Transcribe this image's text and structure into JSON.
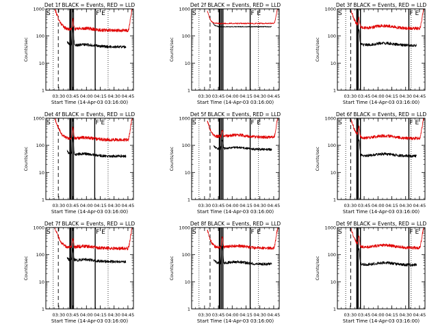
{
  "figure": {
    "background_color": "#ffffff",
    "axis_color": "#000000",
    "events_color": "#000000",
    "lld_color": "#e00000"
  },
  "chart_data": [
    {
      "type": "line",
      "title": "Det 1f BLACK = Events, RED = LLD",
      "xlabel": "Start Time (14-Apr-03 03:16:00)",
      "ylabel": "Counts/sec",
      "yscale": "log",
      "ylim": [
        1,
        1000
      ],
      "xlim_minutes": [
        0,
        95
      ],
      "x_tick_labels": [
        "03:30",
        "03:45",
        "04:00",
        "04:15",
        "04:30",
        "04:45"
      ],
      "y_tick_labels": [
        "1",
        "10",
        "100",
        "1000"
      ],
      "markers": [
        {
          "t": 53.5,
          "label": "F"
        },
        {
          "t": 59.5,
          "label": "E"
        }
      ],
      "markers_dotted_t": [
        8,
        67.5
      ],
      "markers_dashed_t": [
        13.5
      ],
      "markers_solid_t": [
        26,
        27,
        28.5,
        30,
        53.5
      ],
      "series": [
        {
          "name": "RED = LLD",
          "start": 10,
          "end": 94,
          "base": 160,
          "start_level": 950,
          "decay": 3.5,
          "spike": 200,
          "bump": 1.2,
          "end_rise": 1200,
          "noise": 0.14
        },
        {
          "name": "BLACK = Events",
          "start": 23,
          "end": 87,
          "base": 40,
          "start_level": 60,
          "decay": 3.0,
          "spike": 130,
          "bump": 1.2,
          "end_rise": 0,
          "noise": 0.12
        }
      ]
    },
    {
      "type": "line",
      "title": "Det 2f BLACK = Events, RED = LLD",
      "xlabel": "Start Time (14-Apr-03 03:16:00)",
      "ylabel": "Counts/sec",
      "yscale": "log",
      "ylim": [
        1,
        1000
      ],
      "xlim_minutes": [
        0,
        95
      ],
      "x_tick_labels": [
        "03:30",
        "03:45",
        "04:00",
        "04:15",
        "04:30",
        "04:45"
      ],
      "y_tick_labels": [
        "1",
        "10",
        "100",
        "1000"
      ],
      "markers": [
        {
          "t": 63.5,
          "label": "F"
        },
        {
          "t": 70,
          "label": "E"
        }
      ],
      "markers_dotted_t": [
        8,
        72.5
      ],
      "markers_dashed_t": [
        20
      ],
      "markers_solid_t": [
        30,
        31,
        32.5,
        34,
        63.5
      ],
      "series": [
        {
          "name": "RED = LLD",
          "start": 17,
          "end": 94,
          "base": 290,
          "start_level": 900,
          "decay": 2.0,
          "spike": 0,
          "bump": 1.0,
          "end_rise": 1400,
          "noise": 0.05
        },
        {
          "name": "BLACK = Events",
          "start": 23,
          "end": 87,
          "base": 220,
          "start_level": 300,
          "decay": 2.0,
          "spike": 0,
          "bump": 1.0,
          "end_rise": 0,
          "noise": 0.04
        }
      ]
    },
    {
      "type": "line",
      "title": "Det 3f BLACK = Events, RED = LLD",
      "xlabel": "Start Time (14-Apr-03 03:16:00)",
      "ylabel": "Counts/sec",
      "yscale": "log",
      "ylim": [
        1,
        1000
      ],
      "xlim_minutes": [
        0,
        95
      ],
      "x_tick_labels": [
        "03:30",
        "03:45",
        "04:00",
        "04:15",
        "04:30",
        "04:45"
      ],
      "y_tick_labels": [
        "1",
        "10",
        "100",
        "1000"
      ],
      "markers": [
        {
          "t": 77.5,
          "label": "F"
        },
        {
          "t": 83.5,
          "label": "E"
        }
      ],
      "markers_dotted_t": [
        9,
        80
      ],
      "markers_dashed_t": [
        14.5
      ],
      "markers_solid_t": [
        21,
        21.5,
        22.5,
        25,
        77.5
      ],
      "series": [
        {
          "name": "RED = LLD",
          "start": 15,
          "end": 94,
          "base": 190,
          "start_level": 850,
          "decay": 3.0,
          "spike": 220,
          "bump": 1.25,
          "end_rise": 1200,
          "noise": 0.13
        },
        {
          "name": "BLACK = Events",
          "start": 21,
          "end": 86,
          "base": 45,
          "start_level": 65,
          "decay": 3.0,
          "spike": 110,
          "bump": 1.2,
          "end_rise": 0,
          "noise": 0.12
        }
      ]
    },
    {
      "type": "line",
      "title": "Det 4f BLACK = Events, RED = LLD",
      "xlabel": "Start Time (14-Apr-03 03:16:00)",
      "ylabel": "Counts/sec",
      "yscale": "log",
      "ylim": [
        1,
        1000
      ],
      "xlim_minutes": [
        0,
        95
      ],
      "x_tick_labels": [
        "03:30",
        "03:45",
        "04:00",
        "04:15",
        "04:30",
        "04:45"
      ],
      "y_tick_labels": [
        "1",
        "10",
        "100",
        "1000"
      ],
      "markers": [
        {
          "t": 53,
          "label": "F"
        },
        {
          "t": 59,
          "label": "E"
        }
      ],
      "markers_dotted_t": [
        8,
        67.5
      ],
      "markers_dashed_t": [
        13.5
      ],
      "markers_solid_t": [
        26,
        27,
        28.5,
        30,
        53
      ],
      "series": [
        {
          "name": "RED = LLD",
          "start": 10,
          "end": 94,
          "base": 160,
          "start_level": 950,
          "decay": 3.5,
          "spike": 220,
          "bump": 1.2,
          "end_rise": 1200,
          "noise": 0.14
        },
        {
          "name": "BLACK = Events",
          "start": 23,
          "end": 87,
          "base": 40,
          "start_level": 60,
          "decay": 3.0,
          "spike": 120,
          "bump": 1.2,
          "end_rise": 0,
          "noise": 0.12
        }
      ]
    },
    {
      "type": "line",
      "title": "Det 5f BLACK = Events, RED = LLD",
      "xlabel": "Start Time (14-Apr-03 03:16:00)",
      "ylabel": "Counts/sec",
      "yscale": "log",
      "ylim": [
        1,
        1000
      ],
      "xlim_minutes": [
        0,
        95
      ],
      "x_tick_labels": [
        "03:30",
        "03:45",
        "04:00",
        "04:15",
        "04:30",
        "04:45"
      ],
      "y_tick_labels": [
        "1",
        "10",
        "100",
        "1000"
      ],
      "markers": [
        {
          "t": 63.5,
          "label": "F"
        },
        {
          "t": 70,
          "label": "E"
        }
      ],
      "markers_dotted_t": [
        8,
        72.5
      ],
      "markers_dashed_t": [
        20
      ],
      "markers_solid_t": [
        30,
        31,
        32.5,
        34,
        63.5
      ],
      "series": [
        {
          "name": "RED = LLD",
          "start": 17,
          "end": 94,
          "base": 200,
          "start_level": 850,
          "decay": 2.5,
          "spike": 150,
          "bump": 1.2,
          "end_rise": 1300,
          "noise": 0.13
        },
        {
          "name": "BLACK = Events",
          "start": 24,
          "end": 87,
          "base": 70,
          "start_level": 100,
          "decay": 2.5,
          "spike": 80,
          "bump": 1.2,
          "end_rise": 0,
          "noise": 0.1
        }
      ]
    },
    {
      "type": "line",
      "title": "Det 6f BLACK = Events, RED = LLD",
      "xlabel": "Start Time (14-Apr-03 03:16:00)",
      "ylabel": "Counts/sec",
      "yscale": "log",
      "ylim": [
        1,
        1000
      ],
      "xlim_minutes": [
        0,
        95
      ],
      "x_tick_labels": [
        "03:30",
        "03:45",
        "04:00",
        "04:15",
        "04:30",
        "04:45"
      ],
      "y_tick_labels": [
        "1",
        "10",
        "100",
        "1000"
      ],
      "markers": [
        {
          "t": 77.5,
          "label": "F"
        },
        {
          "t": 83.5,
          "label": "E"
        }
      ],
      "markers_dotted_t": [
        9,
        80
      ],
      "markers_dashed_t": [
        14.5
      ],
      "markers_solid_t": [
        21,
        21.5,
        22.5,
        25,
        77.5
      ],
      "series": [
        {
          "name": "RED = LLD",
          "start": 15,
          "end": 94,
          "base": 180,
          "start_level": 850,
          "decay": 3.0,
          "spike": 260,
          "bump": 1.25,
          "end_rise": 1200,
          "noise": 0.13
        },
        {
          "name": "BLACK = Events",
          "start": 21,
          "end": 86,
          "base": 40,
          "start_level": 60,
          "decay": 3.0,
          "spike": 120,
          "bump": 1.2,
          "end_rise": 0,
          "noise": 0.12
        }
      ]
    },
    {
      "type": "line",
      "title": "Det 7f BLACK = Events, RED = LLD",
      "xlabel": "Start Time (14-Apr-03 03:16:00)",
      "ylabel": "Counts/sec",
      "yscale": "log",
      "ylim": [
        1,
        1000
      ],
      "xlim_minutes": [
        0,
        95
      ],
      "x_tick_labels": [
        "03:30",
        "03:45",
        "04:00",
        "04:15",
        "04:30",
        "04:45"
      ],
      "y_tick_labels": [
        "1",
        "10",
        "100",
        "1000"
      ],
      "markers": [
        {
          "t": 53.5,
          "label": "F"
        },
        {
          "t": 59.5,
          "label": "E"
        }
      ],
      "markers_dotted_t": [
        8,
        67.5
      ],
      "markers_dashed_t": [
        13.5
      ],
      "markers_solid_t": [
        26,
        27,
        28.5,
        30,
        53.5
      ],
      "series": [
        {
          "name": "RED = LLD",
          "start": 10,
          "end": 94,
          "base": 170,
          "start_level": 950,
          "decay": 3.5,
          "spike": 180,
          "bump": 1.2,
          "end_rise": 1200,
          "noise": 0.14
        },
        {
          "name": "BLACK = Events",
          "start": 23,
          "end": 87,
          "base": 55,
          "start_level": 70,
          "decay": 3.0,
          "spike": 90,
          "bump": 1.2,
          "end_rise": 0,
          "noise": 0.12
        }
      ]
    },
    {
      "type": "line",
      "title": "Det 8f BLACK = Events, RED = LLD",
      "xlabel": "Start Time (14-Apr-03 03:16:00)",
      "ylabel": "Counts/sec",
      "yscale": "log",
      "ylim": [
        1,
        1000
      ],
      "xlim_minutes": [
        0,
        95
      ],
      "x_tick_labels": [
        "03:30",
        "03:45",
        "04:00",
        "04:15",
        "04:30",
        "04:45"
      ],
      "y_tick_labels": [
        "1",
        "10",
        "100",
        "1000"
      ],
      "markers": [
        {
          "t": 63.5,
          "label": "F"
        },
        {
          "t": 70,
          "label": "E"
        }
      ],
      "markers_dotted_t": [
        8,
        72.5
      ],
      "markers_dashed_t": [
        20
      ],
      "markers_solid_t": [
        30,
        31,
        32.5,
        34,
        63.5
      ],
      "series": [
        {
          "name": "RED = LLD",
          "start": 17,
          "end": 94,
          "base": 175,
          "start_level": 850,
          "decay": 2.5,
          "spike": 250,
          "bump": 1.2,
          "end_rise": 1300,
          "noise": 0.13
        },
        {
          "name": "BLACK = Events",
          "start": 24,
          "end": 87,
          "base": 45,
          "start_level": 65,
          "decay": 2.5,
          "spike": 130,
          "bump": 1.2,
          "end_rise": 0,
          "noise": 0.12
        }
      ]
    },
    {
      "type": "line",
      "title": "Det 9f BLACK = Events, RED = LLD",
      "xlabel": "Start Time (14-Apr-03 03:16:00)",
      "ylabel": "Counts/sec",
      "yscale": "log",
      "ylim": [
        1,
        1000
      ],
      "xlim_minutes": [
        0,
        95
      ],
      "x_tick_labels": [
        "03:30",
        "03:45",
        "04:00",
        "04:15",
        "04:30",
        "04:45"
      ],
      "y_tick_labels": [
        "1",
        "10",
        "100",
        "1000"
      ],
      "markers": [
        {
          "t": 77.5,
          "label": "F"
        },
        {
          "t": 83.5,
          "label": "E"
        }
      ],
      "markers_dotted_t": [
        9,
        80
      ],
      "markers_dashed_t": [
        14.5
      ],
      "markers_solid_t": [
        21,
        21.5,
        22.5,
        25,
        77.5
      ],
      "series": [
        {
          "name": "RED = LLD",
          "start": 15,
          "end": 94,
          "base": 180,
          "start_level": 850,
          "decay": 3.0,
          "spike": 250,
          "bump": 1.25,
          "end_rise": 1200,
          "noise": 0.13
        },
        {
          "name": "BLACK = Events",
          "start": 21,
          "end": 86,
          "base": 42,
          "start_level": 60,
          "decay": 3.0,
          "spike": 110,
          "bump": 1.2,
          "end_rise": 0,
          "noise": 0.12
        }
      ]
    }
  ]
}
